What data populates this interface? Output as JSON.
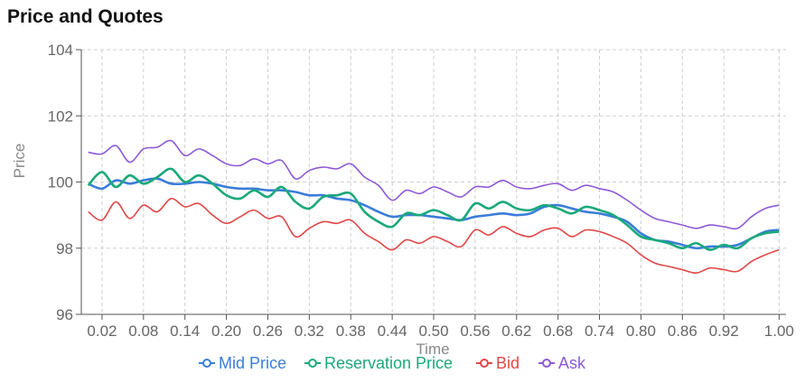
{
  "title": "Price and Quotes",
  "chart_data": {
    "type": "line",
    "xlabel": "Time",
    "ylabel": "Price",
    "xlim": [
      -0.01,
      1.01
    ],
    "ylim": [
      96,
      104
    ],
    "grid": true,
    "legend_position": "bottom",
    "x_ticks": [
      "0.02",
      "0.08",
      "0.14",
      "0.20",
      "0.26",
      "0.32",
      "0.38",
      "0.44",
      "0.50",
      "0.56",
      "0.62",
      "0.68",
      "0.74",
      "0.80",
      "0.86",
      "0.92",
      "1.00"
    ],
    "y_ticks": [
      "96",
      "98",
      "100",
      "102",
      "104"
    ],
    "x": [
      0.0,
      0.02,
      0.04,
      0.06,
      0.08,
      0.1,
      0.12,
      0.14,
      0.16,
      0.18,
      0.2,
      0.22,
      0.24,
      0.26,
      0.28,
      0.3,
      0.32,
      0.34,
      0.36,
      0.38,
      0.4,
      0.42,
      0.44,
      0.46,
      0.48,
      0.5,
      0.52,
      0.54,
      0.56,
      0.58,
      0.6,
      0.62,
      0.64,
      0.66,
      0.68,
      0.7,
      0.72,
      0.74,
      0.76,
      0.78,
      0.8,
      0.82,
      0.84,
      0.86,
      0.88,
      0.9,
      0.92,
      0.94,
      0.96,
      0.98,
      1.0
    ],
    "series": [
      {
        "name": "Mid Price",
        "color": "#3b7dd8",
        "values": [
          99.95,
          99.8,
          100.05,
          99.95,
          100.05,
          100.1,
          99.95,
          99.95,
          100.0,
          99.95,
          99.85,
          99.8,
          99.8,
          99.75,
          99.75,
          99.7,
          99.6,
          99.6,
          99.5,
          99.45,
          99.3,
          99.1,
          98.95,
          99.0,
          99.0,
          98.95,
          98.9,
          98.85,
          98.95,
          99.0,
          99.05,
          99.0,
          99.05,
          99.25,
          99.3,
          99.2,
          99.1,
          99.05,
          98.95,
          98.8,
          98.45,
          98.25,
          98.2,
          98.1,
          98.0,
          98.05,
          98.05,
          98.1,
          98.3,
          98.5,
          98.55
        ]
      },
      {
        "name": "Reservation Price",
        "color": "#1aa97a",
        "values": [
          99.9,
          100.3,
          99.85,
          100.2,
          99.95,
          100.15,
          100.4,
          100.0,
          100.2,
          99.95,
          99.6,
          99.5,
          99.75,
          99.55,
          99.85,
          99.4,
          99.2,
          99.55,
          99.6,
          99.65,
          99.1,
          98.8,
          98.65,
          99.05,
          99.0,
          99.15,
          99.0,
          98.85,
          99.35,
          99.2,
          99.4,
          99.2,
          99.15,
          99.3,
          99.2,
          99.05,
          99.25,
          99.15,
          99.0,
          98.7,
          98.35,
          98.25,
          98.15,
          98.0,
          98.15,
          97.95,
          98.1,
          98.0,
          98.3,
          98.45,
          98.5
        ]
      },
      {
        "name": "Bid",
        "color": "#e04848",
        "values": [
          99.1,
          98.85,
          99.4,
          98.9,
          99.3,
          99.1,
          99.5,
          99.25,
          99.35,
          99.0,
          98.75,
          98.95,
          99.15,
          98.9,
          98.95,
          98.35,
          98.6,
          98.8,
          98.75,
          98.85,
          98.45,
          98.2,
          97.95,
          98.25,
          98.15,
          98.35,
          98.2,
          98.05,
          98.55,
          98.4,
          98.65,
          98.45,
          98.35,
          98.55,
          98.6,
          98.35,
          98.55,
          98.5,
          98.35,
          98.15,
          97.8,
          97.55,
          97.45,
          97.35,
          97.25,
          97.4,
          97.35,
          97.3,
          97.6,
          97.8,
          97.95
        ]
      },
      {
        "name": "Ask",
        "color": "#8e5ad6",
        "values": [
          100.9,
          100.85,
          101.1,
          100.6,
          101.0,
          101.05,
          101.25,
          100.8,
          101.0,
          100.8,
          100.55,
          100.5,
          100.7,
          100.55,
          100.65,
          100.1,
          100.35,
          100.45,
          100.4,
          100.55,
          100.15,
          99.9,
          99.45,
          99.75,
          99.65,
          99.85,
          99.7,
          99.55,
          99.85,
          99.85,
          100.05,
          99.85,
          99.8,
          99.9,
          99.95,
          99.75,
          99.9,
          99.8,
          99.7,
          99.45,
          99.15,
          98.9,
          98.8,
          98.7,
          98.6,
          98.7,
          98.65,
          98.6,
          98.95,
          99.2,
          99.3
        ]
      }
    ]
  }
}
